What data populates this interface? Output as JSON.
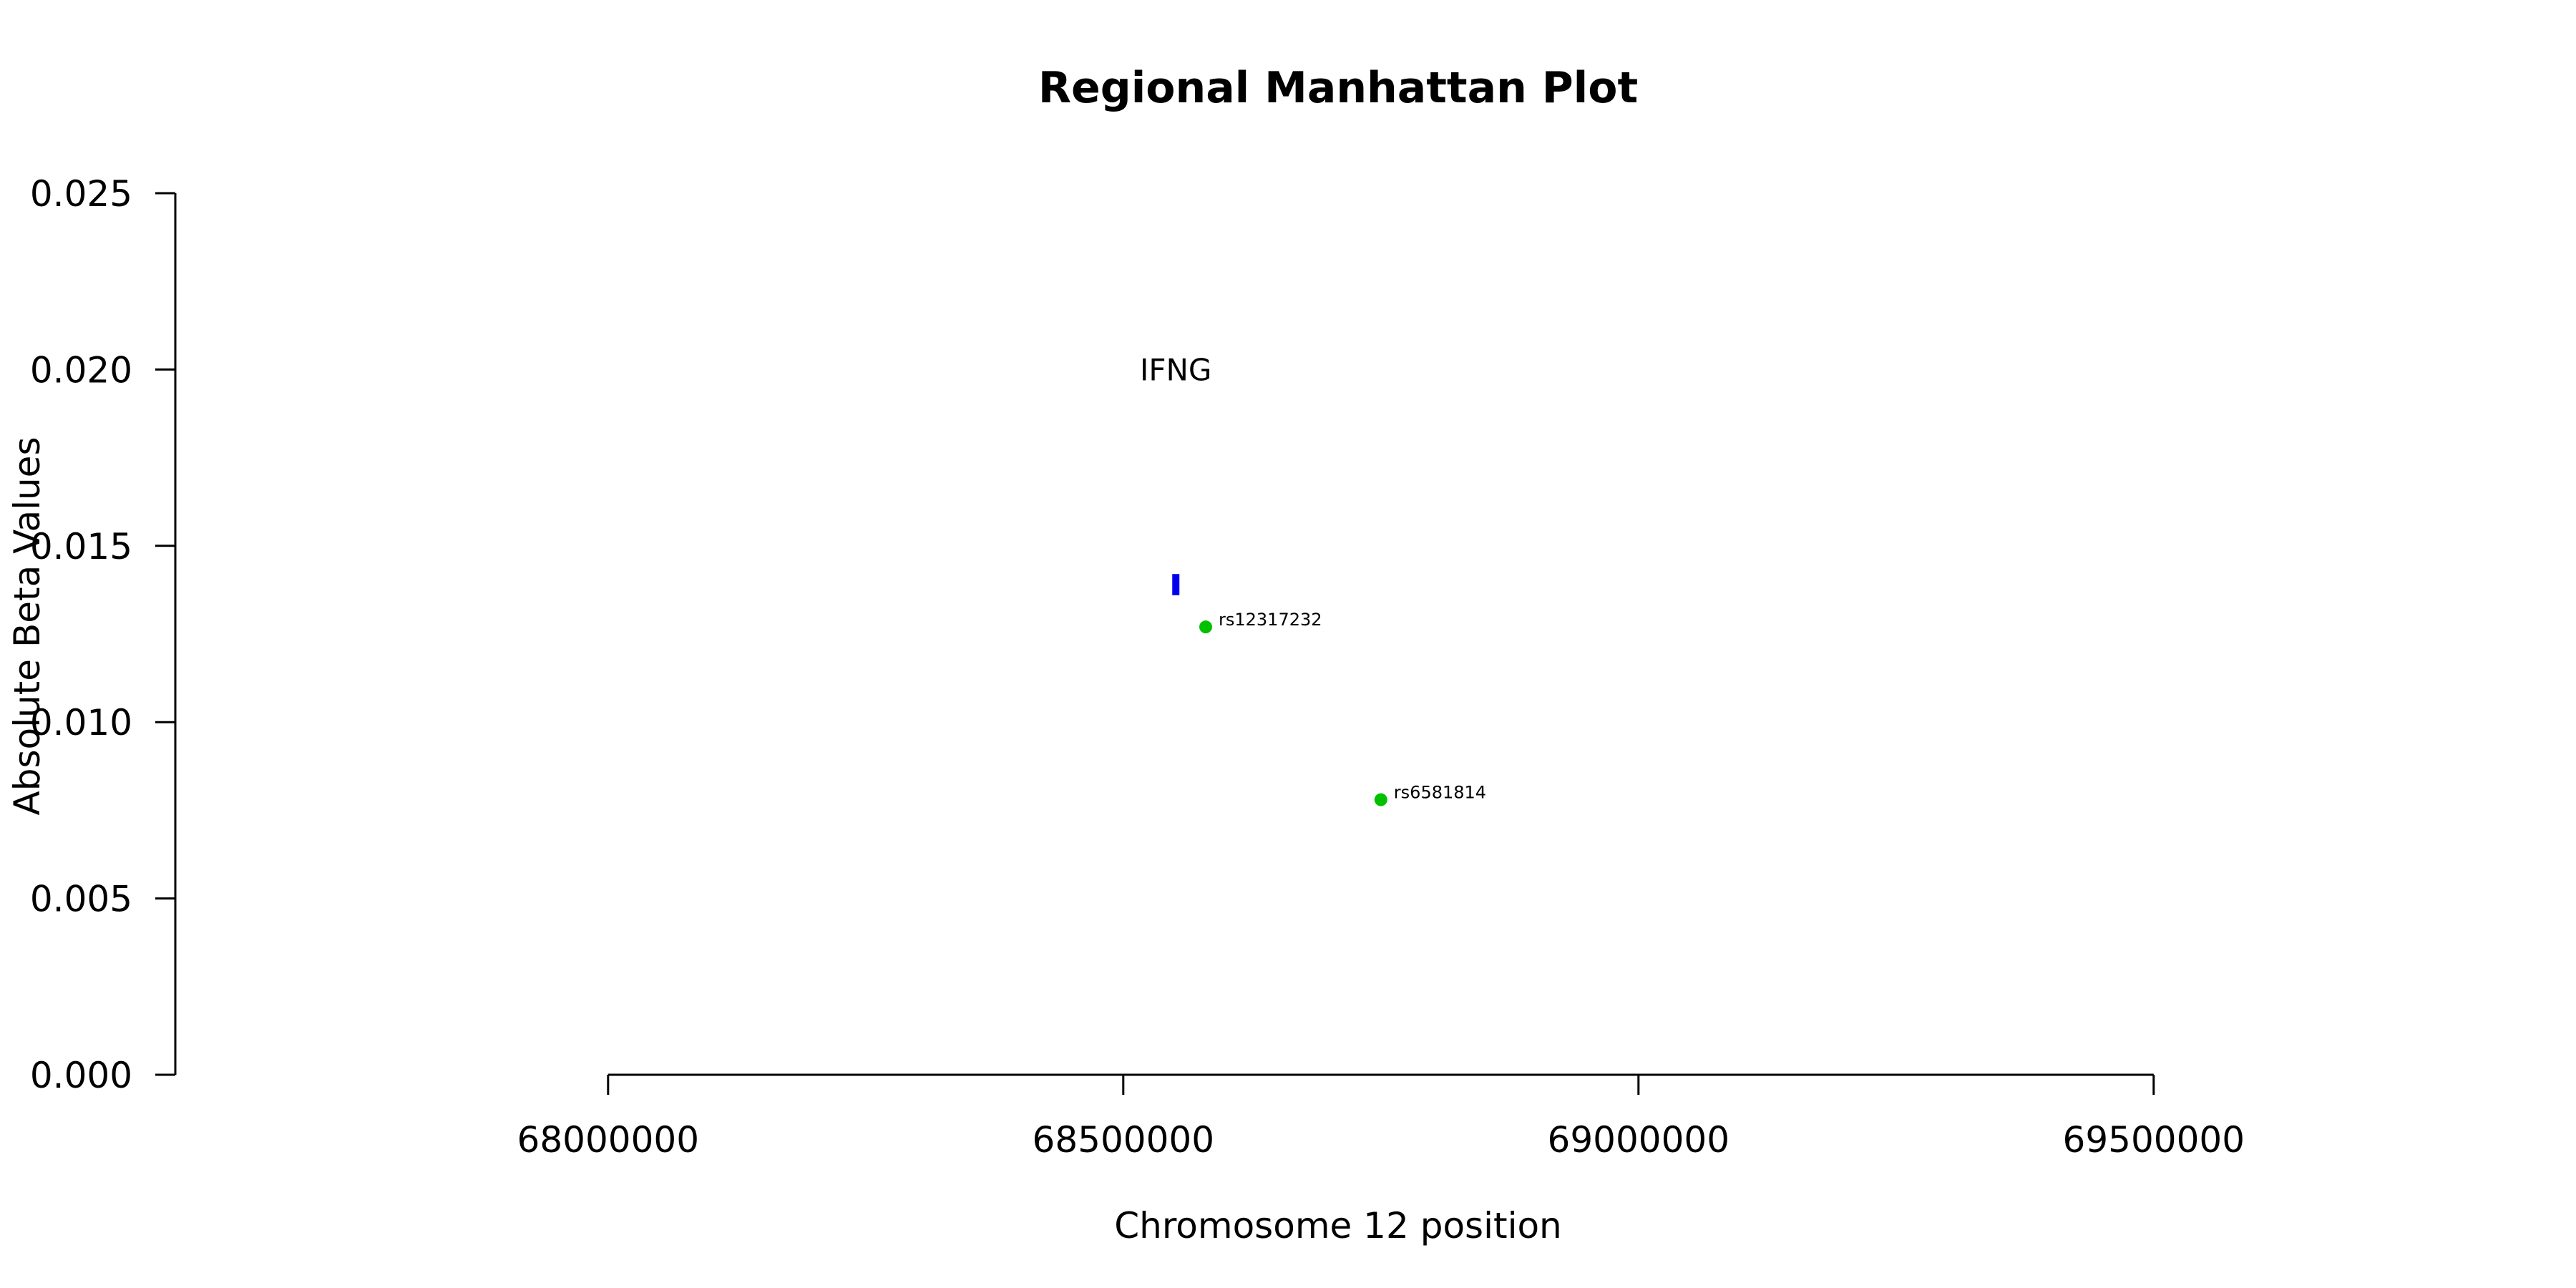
{
  "chart_data": {
    "type": "scatter",
    "title": "Regional Manhattan Plot",
    "xlabel": "Chromosome 12 position",
    "ylabel": "Absolute Beta Values",
    "xlim": [
      67580000,
      69580000
    ],
    "ylim": [
      0,
      0.025
    ],
    "x_ticks": [
      68000000,
      68500000,
      69000000,
      69500000
    ],
    "y_ticks": [
      0.0,
      0.005,
      0.01,
      0.015,
      0.02,
      0.025
    ],
    "x_tick_labels": [
      "68000000",
      "68500000",
      "69000000",
      "69500000"
    ],
    "y_tick_labels": [
      "0.000",
      "0.005",
      "0.010",
      "0.015",
      "0.020",
      "0.025"
    ],
    "points": [
      {
        "label": "rs12317232",
        "x": 68580000,
        "y": 0.0127
      },
      {
        "label": "rs6581814",
        "x": 68750000,
        "y": 0.0078
      }
    ],
    "point_color": "#00c000",
    "gene": {
      "name": "IFNG",
      "x": 68551000,
      "y_low": 0.0136,
      "y_high": 0.0142,
      "label_y": 0.02,
      "color": "#0000ee"
    },
    "grid": false,
    "legend": "none"
  }
}
